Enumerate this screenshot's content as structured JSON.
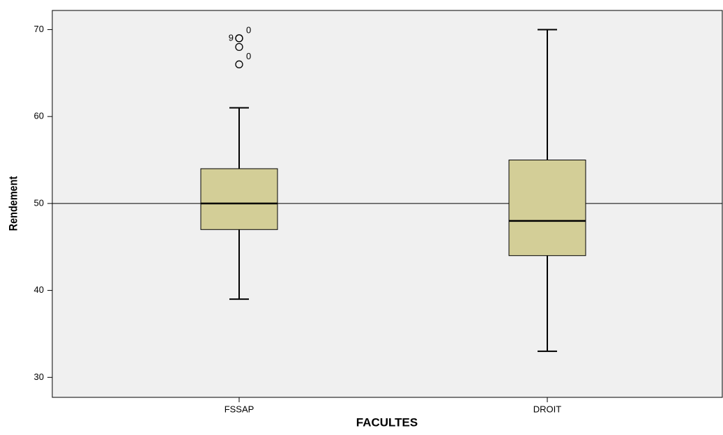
{
  "chart_data": {
    "type": "boxplot",
    "x_label": "FACULTES",
    "y_label": "Rendement",
    "categories": [
      "FSSAP",
      "DROIT"
    ],
    "boxes": [
      {
        "min": 39,
        "q1": 47,
        "median": 50,
        "q3": 54,
        "max": 61,
        "outliers": [
          66,
          68,
          69,
          69
        ],
        "outlier_labels": [
          "0",
          null,
          "9",
          "0"
        ]
      },
      {
        "min": 33,
        "q1": 44,
        "median": 48,
        "q3": 55,
        "max": 70,
        "outliers": [],
        "outlier_labels": []
      }
    ],
    "color": "#d3ce97",
    "background": "#f0f0f0",
    "reference_line": 50,
    "ylim": [
      27.7,
      72.2
    ],
    "yticks": [
      30,
      40,
      50,
      60,
      70
    ]
  }
}
